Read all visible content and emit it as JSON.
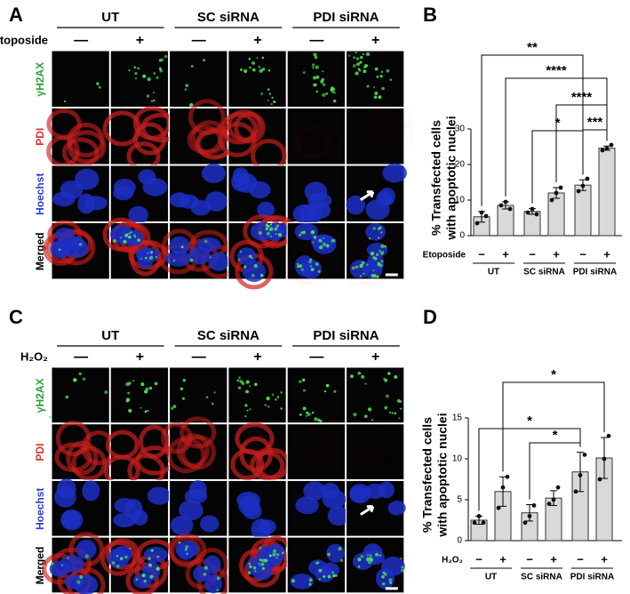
{
  "panels": [
    {
      "letter": "A",
      "groups": [
        "UT",
        "SC siRNA",
        "PDI siRNA"
      ],
      "treatment": "Etoposide",
      "signs": [
        "—",
        "+",
        "—",
        "+",
        "—",
        "+"
      ],
      "rows": [
        {
          "label": "γH2AX",
          "color": "#2e9e3a"
        },
        {
          "label": "PDI",
          "color": "#e03030"
        },
        {
          "label": "Hoechst",
          "color": "#2a3fd0"
        },
        {
          "label": "Merged",
          "color": "#000000"
        }
      ]
    },
    {
      "letter": "C",
      "groups": [
        "UT",
        "SC siRNA",
        "PDI siRNA"
      ],
      "treatment": "H₂O₂",
      "signs": [
        "—",
        "+",
        "—",
        "+",
        "—",
        "+"
      ],
      "rows": [
        {
          "label": "γH2AX",
          "color": "#2e9e3a"
        },
        {
          "label": "PDI",
          "color": "#e03030"
        },
        {
          "label": "Hoechst",
          "color": "#2a3fd0"
        },
        {
          "label": "Merged",
          "color": "#000000"
        }
      ]
    }
  ],
  "chart_data": [
    {
      "type": "bar",
      "letter": "B",
      "y_label": [
        "% Transfected cells",
        "with apoptotic nuclei"
      ],
      "treatment_label": "Etoposide",
      "categories": [
        "−",
        "+",
        "−",
        "+",
        "−",
        "+"
      ],
      "groups": [
        "UT",
        "SC siRNA",
        "PDI siRNA"
      ],
      "values": [
        5.3,
        8.5,
        6.8,
        12.0,
        14.2,
        24.6
      ],
      "errors": [
        1.5,
        1.0,
        0.8,
        1.5,
        1.5,
        0.6
      ],
      "points": [
        [
          3.5,
          6.5,
          5.5
        ],
        [
          8.5,
          9.5,
          7.5
        ],
        [
          6.5,
          7.5,
          6.0
        ],
        [
          10.0,
          12.0,
          13.5
        ],
        [
          12.5,
          14.0,
          16.0
        ],
        [
          24.0,
          24.5,
          25.5
        ]
      ],
      "color": "#d9d9d9",
      "ylim": [
        0,
        30
      ],
      "yticks": [
        0,
        10,
        20,
        30
      ],
      "comparisons": [
        {
          "label": "**",
          "between": [
            0,
            4
          ]
        },
        {
          "label": "****",
          "between": [
            1,
            5
          ]
        },
        {
          "label": "****",
          "between": [
            3,
            5
          ]
        },
        {
          "label": "*",
          "between": [
            2,
            4
          ]
        },
        {
          "label": "***",
          "between": [
            4,
            5
          ]
        }
      ]
    },
    {
      "type": "bar",
      "letter": "D",
      "y_label": [
        "% Transfected cells",
        "with apoptotic nuclei"
      ],
      "treatment_label": "H₂O₂",
      "categories": [
        "−",
        "+",
        "−",
        "+",
        "−",
        "+"
      ],
      "groups": [
        "UT",
        "SC siRNA",
        "PDI siRNA"
      ],
      "values": [
        2.5,
        6.0,
        3.4,
        5.2,
        8.4,
        10.1
      ],
      "errors": [
        0.5,
        1.8,
        1.0,
        0.9,
        2.4,
        2.5
      ],
      "points": [
        [
          2.2,
          3.0,
          2.2
        ],
        [
          4.0,
          6.5,
          7.8
        ],
        [
          2.2,
          3.0,
          4.3
        ],
        [
          4.5,
          5.0,
          6.5
        ],
        [
          6.0,
          8.0,
          10.5
        ],
        [
          7.5,
          10.0,
          12.8
        ]
      ],
      "color": "#d9d9d9",
      "ylim": [
        0,
        15
      ],
      "yticks": [
        0,
        5,
        10,
        15
      ],
      "comparisons": [
        {
          "label": "*",
          "between": [
            0,
            4
          ]
        },
        {
          "label": "*",
          "between": [
            2,
            4
          ]
        },
        {
          "label": "*",
          "between": [
            1,
            5
          ]
        }
      ]
    }
  ]
}
